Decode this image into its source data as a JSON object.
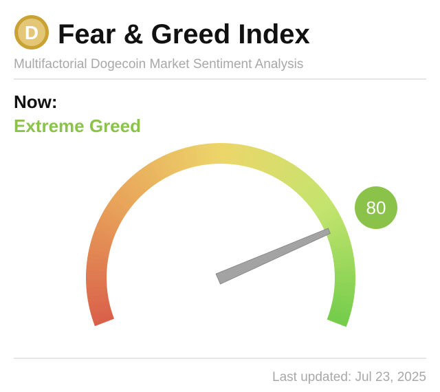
{
  "chart_data": {
    "type": "gauge",
    "title": "Fear & Greed Index",
    "subtitle": "Multifactorial Dogecoin Market Sentiment Analysis",
    "now_label": "Now:",
    "classification": "Extreme Greed",
    "value": 80,
    "range": [
      0,
      100
    ],
    "color": "#8bc34a",
    "updated": "Last updated: Jul 23, 2025"
  }
}
